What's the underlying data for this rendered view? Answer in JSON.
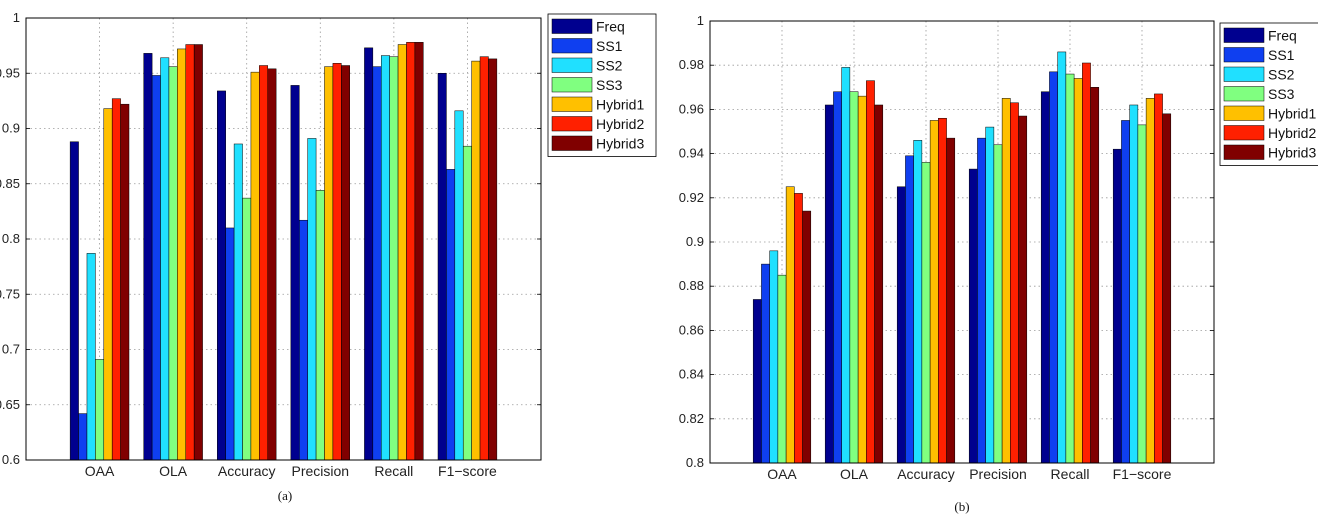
{
  "chart_data": [
    {
      "type": "bar",
      "caption": "(a)",
      "categories": [
        "OAA",
        "OLA",
        "Accuracy",
        "Precision",
        "Recall",
        "F1−score"
      ],
      "ylim": [
        0.6,
        1
      ],
      "yticks": [
        "0.6",
        "0.65",
        "0.7",
        "0.75",
        "0.8",
        "0.85",
        "0.9",
        "0.95",
        "1"
      ],
      "grid": true,
      "legend_position": "outside-right",
      "series": [
        {
          "name": "Freq",
          "color": "#00008f",
          "values": [
            0.888,
            0.968,
            0.934,
            0.939,
            0.973,
            0.95
          ]
        },
        {
          "name": "SS1",
          "color": "#0f3ff0",
          "values": [
            0.642,
            0.948,
            0.81,
            0.817,
            0.956,
            0.863
          ]
        },
        {
          "name": "SS2",
          "color": "#20e0ff",
          "values": [
            0.787,
            0.964,
            0.886,
            0.891,
            0.966,
            0.916
          ]
        },
        {
          "name": "SS3",
          "color": "#80ff80",
          "values": [
            0.691,
            0.956,
            0.837,
            0.844,
            0.965,
            0.884
          ]
        },
        {
          "name": "Hybrid1",
          "color": "#ffc000",
          "values": [
            0.918,
            0.972,
            0.951,
            0.956,
            0.976,
            0.961
          ]
        },
        {
          "name": "Hybrid2",
          "color": "#ff2000",
          "values": [
            0.927,
            0.976,
            0.957,
            0.959,
            0.978,
            0.965
          ]
        },
        {
          "name": "Hybrid3",
          "color": "#800000",
          "values": [
            0.922,
            0.976,
            0.954,
            0.957,
            0.978,
            0.963
          ]
        }
      ]
    },
    {
      "type": "bar",
      "caption": "(b)",
      "categories": [
        "OAA",
        "OLA",
        "Accuracy",
        "Precision",
        "Recall",
        "F1−score"
      ],
      "ylim": [
        0.8,
        1
      ],
      "yticks": [
        "0.8",
        "0.82",
        "0.84",
        "0.86",
        "0.88",
        "0.9",
        "0.92",
        "0.94",
        "0.96",
        "0.98",
        "1"
      ],
      "grid": true,
      "legend_position": "outside-right",
      "series": [
        {
          "name": "Freq",
          "color": "#00008f",
          "values": [
            0.874,
            0.962,
            0.925,
            0.933,
            0.968,
            0.942
          ]
        },
        {
          "name": "SS1",
          "color": "#0f3ff0",
          "values": [
            0.89,
            0.968,
            0.939,
            0.947,
            0.977,
            0.955
          ]
        },
        {
          "name": "SS2",
          "color": "#20e0ff",
          "values": [
            0.896,
            0.979,
            0.946,
            0.952,
            0.986,
            0.962
          ]
        },
        {
          "name": "SS3",
          "color": "#80ff80",
          "values": [
            0.885,
            0.968,
            0.936,
            0.944,
            0.976,
            0.953
          ]
        },
        {
          "name": "Hybrid1",
          "color": "#ffc000",
          "values": [
            0.925,
            0.966,
            0.955,
            0.965,
            0.974,
            0.965
          ]
        },
        {
          "name": "Hybrid2",
          "color": "#ff2000",
          "values": [
            0.922,
            0.973,
            0.956,
            0.963,
            0.981,
            0.967
          ]
        },
        {
          "name": "Hybrid3",
          "color": "#800000",
          "values": [
            0.914,
            0.962,
            0.947,
            0.957,
            0.97,
            0.958
          ]
        }
      ]
    }
  ]
}
